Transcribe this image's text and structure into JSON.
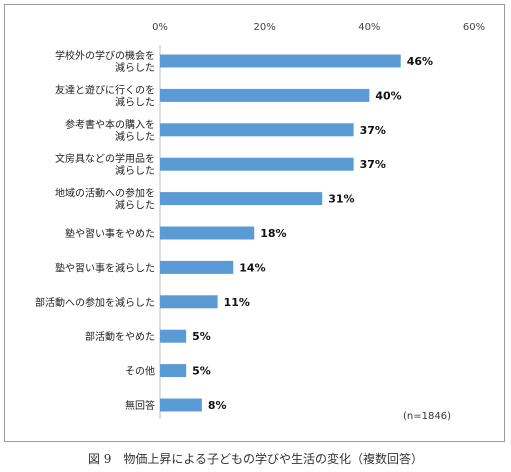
{
  "chart_data": {
    "type": "bar",
    "orientation": "horizontal",
    "categories": [
      [
        "学校外の学びの機会を",
        "減らした"
      ],
      [
        "友達と遊びに行くのを",
        "減らした"
      ],
      [
        "参考書や本の購入を",
        "減らした"
      ],
      [
        "文房具などの学用品を",
        "減らした"
      ],
      [
        "地域の活動への参加を",
        "減らした"
      ],
      [
        "塾や習い事をやめた"
      ],
      [
        "塾や習い事を減らした"
      ],
      [
        "部活動への参加を減らした"
      ],
      [
        "部活動をやめた"
      ],
      [
        "その他"
      ],
      [
        "無回答"
      ]
    ],
    "values": [
      46,
      40,
      37,
      37,
      31,
      18,
      14,
      11,
      5,
      5,
      8
    ],
    "value_labels": [
      "46%",
      "40%",
      "37%",
      "37%",
      "31%",
      "18%",
      "14%",
      "11%",
      "5%",
      "5%",
      "8%"
    ],
    "xlim": [
      0,
      60
    ],
    "xticks": [
      "0%",
      "20%",
      "40%",
      "60%"
    ],
    "xtick_values": [
      0,
      20,
      40,
      60
    ],
    "bar_color": "#5b9bd5",
    "grid": false,
    "note": "(n=1846)"
  },
  "caption": "図 9　物価上昇による子どもの学びや生活の変化（複数回答）"
}
